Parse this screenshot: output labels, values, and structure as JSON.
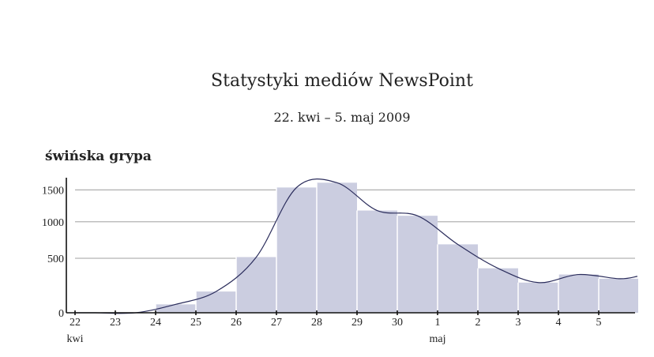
{
  "header": {
    "title": "Statystyki mediów NewsPoint",
    "subtitle": "22. kwi – 5. maj 2009"
  },
  "chart_data": {
    "type": "bar",
    "title": "Statystyki mediów NewsPoint",
    "subtitle": "22. kwi – 5. maj 2009",
    "series_label": "świńska grypa",
    "xlabel": "",
    "ylabel": "",
    "categories": [
      "22",
      "23",
      "24",
      "25",
      "26",
      "27",
      "28",
      "29",
      "30",
      "1",
      "2",
      "3",
      "4",
      "5"
    ],
    "month_labels": [
      {
        "at": "22",
        "label": "kwi"
      },
      {
        "at": "1",
        "label": "maj"
      }
    ],
    "series": [
      {
        "name": "świńska grypa",
        "values": [
          0,
          0,
          40,
          140,
          515,
          1540,
          1620,
          1170,
          1090,
          680,
          380,
          225,
          310,
          265
        ]
      }
    ],
    "smoothed_curve": true,
    "yticks": [
      0,
      500,
      1000,
      1500
    ],
    "ylim": [
      0,
      1750
    ],
    "y_scale": "compressed (non-linear, approx. power 0.74)",
    "grid": true,
    "legend": "none",
    "colors": {
      "bar": "#cbcde0",
      "curve": "#2b2d5c",
      "grid": "#b3b3b3"
    }
  }
}
